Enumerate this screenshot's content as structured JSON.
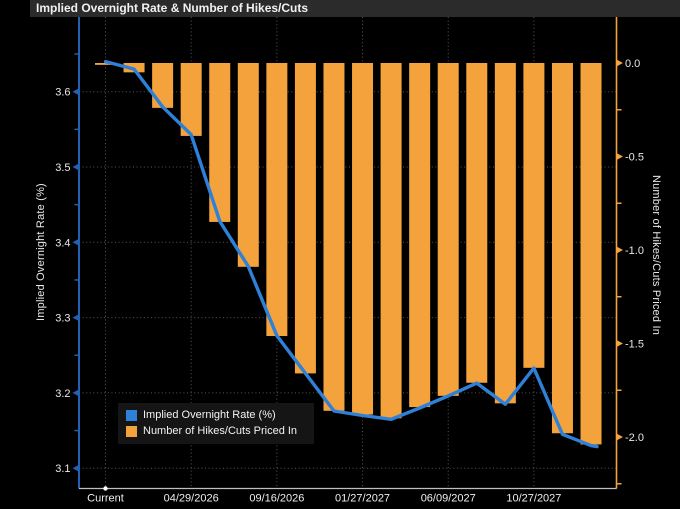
{
  "title_bar": {
    "title": "Implied Overnight Rate & Number of Hikes/Cuts"
  },
  "legend": {
    "items": [
      {
        "label": "Implied Overnight Rate (%)",
        "color": "#2e80d9"
      },
      {
        "label": "Number of Hikes/Cuts Priced In",
        "color": "#f4a23c"
      }
    ]
  },
  "colors": {
    "background": "#000000",
    "title_bar_bg": "#2b2b2b",
    "bar_orange": "#f4a23c",
    "line_blue": "#2e80d9",
    "left_axis_blue": "#2261b2",
    "right_axis_orange": "#f4a23c",
    "bottom_axis_gray": "#bfbfbf",
    "grid_gray": "#575757",
    "current_marker_white": "#ffffff"
  },
  "chart_data": {
    "type": "combo_bar_line",
    "title": "Implied Overnight Rate & Number of Hikes/Cuts",
    "x_axis": {
      "tick_labels": [
        "Current",
        "04/29/2026",
        "09/16/2026",
        "01/27/2027",
        "06/09/2027",
        "10/27/2027"
      ],
      "ticks_every_n_bars": 3,
      "current_marker": "white-dot-on-axis"
    },
    "left_axis": {
      "title": "Implied Overnight Rate (%)",
      "major_ticks": [
        3.6,
        3.5,
        3.4,
        3.3,
        3.2,
        3.1
      ],
      "minor_ticks": [
        3.65,
        3.55,
        3.45,
        3.35,
        3.25,
        3.15
      ],
      "range": [
        3.07,
        3.7
      ]
    },
    "right_axis": {
      "title": "Number of Hikes/Cuts Priced In",
      "major_ticks": [
        0.0,
        -0.5,
        -1.0,
        -1.5,
        -2.0
      ],
      "minor_ticks": [
        -0.25,
        -0.75,
        -1.25,
        -1.75,
        -2.25
      ],
      "range": [
        -2.28,
        0.25
      ]
    },
    "grid": {
      "horizontal_at_left_axis_ticks": true,
      "vertical_at_x_ticks": true,
      "style": "dotted"
    },
    "legend_position": "bottom-left-inside",
    "series": [
      {
        "name": "Implied Overnight Rate (%)",
        "type": "line",
        "axis": "left",
        "color": "#2e80d9",
        "values": [
          3.64,
          3.63,
          3.58,
          3.543,
          3.428,
          3.368,
          3.276,
          3.226,
          3.176,
          3.17,
          3.165,
          3.18,
          3.196,
          3.213,
          3.185,
          3.233,
          3.145,
          3.13
        ]
      },
      {
        "name": "Number of Hikes/Cuts Priced In",
        "type": "bar",
        "axis": "right",
        "color": "#f4a23c",
        "values": [
          -0.01,
          -0.05,
          -0.24,
          -0.39,
          -0.85,
          -1.09,
          -1.46,
          -1.66,
          -1.86,
          -1.88,
          -1.9,
          -1.84,
          -1.78,
          -1.71,
          -1.82,
          -1.63,
          -1.98,
          -2.04
        ]
      }
    ]
  }
}
